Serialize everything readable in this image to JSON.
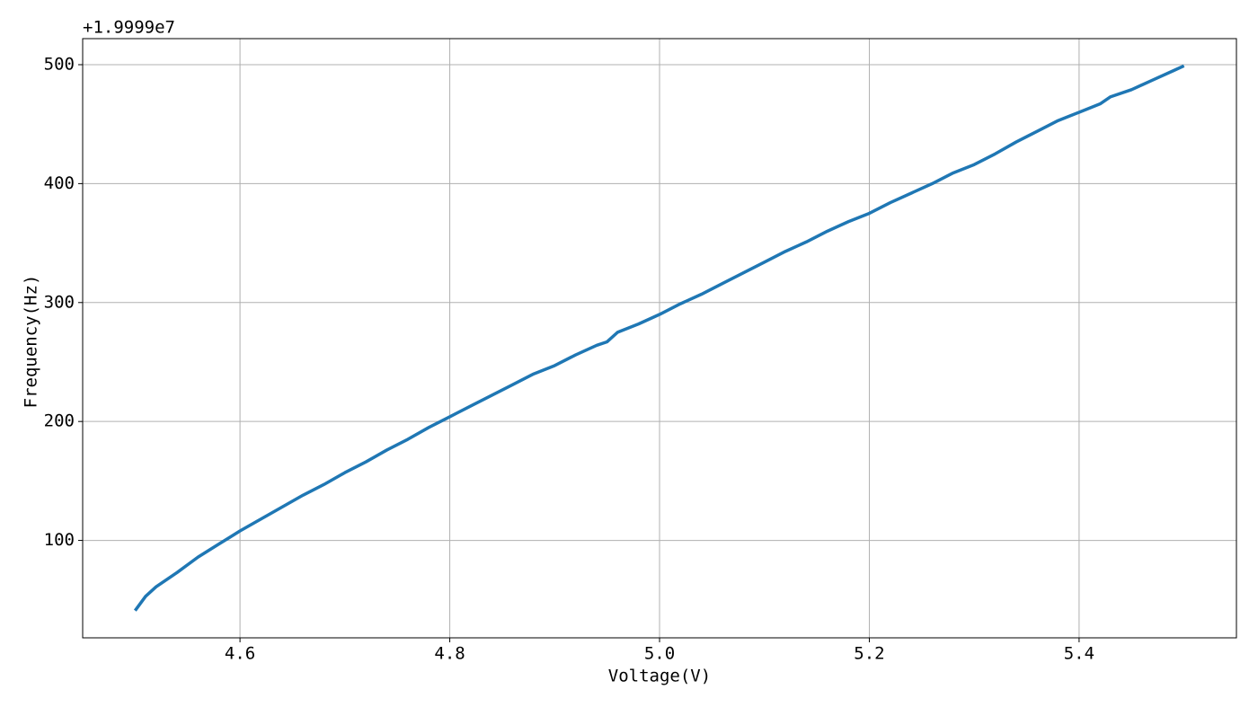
{
  "chart_data": {
    "type": "line",
    "x_label": "Voltage(V)",
    "y_label": "Frequency(Hz)",
    "y_offset_label": "+1.9999e7",
    "x": [
      4.5,
      4.51,
      4.52,
      4.54,
      4.56,
      4.58,
      4.6,
      4.62,
      4.64,
      4.66,
      4.68,
      4.7,
      4.72,
      4.74,
      4.76,
      4.78,
      4.8,
      4.82,
      4.84,
      4.86,
      4.88,
      4.9,
      4.92,
      4.94,
      4.95,
      4.96,
      4.98,
      5.0,
      5.02,
      5.04,
      5.06,
      5.08,
      5.1,
      5.12,
      5.14,
      5.16,
      5.18,
      5.2,
      5.22,
      5.24,
      5.26,
      5.28,
      5.3,
      5.32,
      5.34,
      5.36,
      5.38,
      5.4,
      5.42,
      5.43,
      5.45,
      5.47,
      5.49,
      5.5
    ],
    "series": [
      {
        "name": "Frequency",
        "color": "#1f77b4",
        "values": [
          41,
          53,
          61,
          73,
          86,
          97,
          108,
          118,
          128,
          138,
          147,
          157,
          166,
          176,
          185,
          195,
          204,
          213,
          222,
          231,
          240,
          247,
          256,
          264,
          267,
          275,
          282,
          290,
          299,
          307,
          316,
          325,
          334,
          343,
          351,
          360,
          368,
          375,
          384,
          392,
          400,
          409,
          416,
          425,
          435,
          444,
          453,
          460,
          467,
          473,
          479,
          487,
          495,
          499
        ]
      }
    ],
    "xlim": [
      4.45,
      5.55
    ],
    "ylim": [
      18.1,
      521.9
    ],
    "xticks": [
      4.6,
      4.8,
      {
        "value": 5,
        "label": "5.0"
      },
      5.2,
      5.4
    ],
    "yticks": [
      100,
      200,
      300,
      400,
      500
    ],
    "grid": true
  }
}
